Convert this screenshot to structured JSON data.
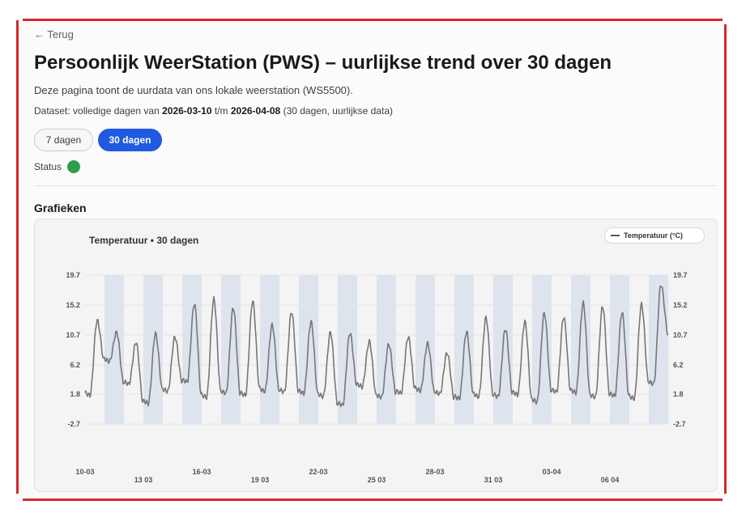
{
  "nav": {
    "back_label": "← Terug"
  },
  "page": {
    "title": "Persoonlijk WeerStation (PWS) – uurlijkse trend over 30 dagen",
    "description": "Deze pagina toont de uurdata van ons lokale weerstation (WS5500).",
    "dataset_prefix": "Dataset: volledige dagen van ",
    "dataset_start": "2026-03-10",
    "dataset_mid": " t/m ",
    "dataset_end": "2026-04-08",
    "dataset_suffix": " (30 dagen, uurlijkse data)"
  },
  "range_buttons": {
    "seven": "7 dagen",
    "thirty": "30 dagen",
    "selected": "30 dagen"
  },
  "status": {
    "label": "Status",
    "color": "#2e9d4a"
  },
  "section": {
    "title": "Grafieken"
  },
  "colors": {
    "accent": "#1f5ae0",
    "frame": "#d9262c",
    "line": "#777777",
    "band": "#dde4ee"
  },
  "chart_data": {
    "type": "line",
    "title": "Temperatuur • 30 dagen",
    "legend": {
      "label": "Temperatuur (°C)",
      "placement": "top-right"
    },
    "ylim": [
      -2.7,
      19.7
    ],
    "yticks": [
      "19.7",
      "15.2",
      "10.7",
      "6.2",
      "1.8",
      "-2.7"
    ],
    "xticks": [
      "10-03",
      "13 03",
      "16-03",
      "19 03",
      "22-03",
      "25 03",
      "28-03",
      "31 03",
      "03-04",
      "06 04"
    ],
    "grid": true,
    "series": [
      {
        "name": "Temperatuur (°C)",
        "unit": "°C",
        "x_start": "2026-03-10",
        "daily_max": [
          12.9,
          11.1,
          9.6,
          10.9,
          10.4,
          15.4,
          16.1,
          14.8,
          15.8,
          12.2,
          14.2,
          12.7,
          11.1,
          11.0,
          9.7,
          9.3,
          10.4,
          9.4,
          8.0,
          11.2,
          13.3,
          11.6,
          12.7,
          14.0,
          13.4,
          15.5,
          15.0,
          14.1,
          15.3,
          18.3
        ],
        "daily_min": [
          1.6,
          6.7,
          3.3,
          0.4,
          2.2,
          3.6,
          1.3,
          1.9,
          1.6,
          2.2,
          2.1,
          1.9,
          1.4,
          0.1,
          2.9,
          1.3,
          1.9,
          2.3,
          1.8,
          1.1,
          1.4,
          1.4,
          1.7,
          0.6,
          2.1,
          2.0,
          1.3,
          1.5,
          1.1,
          3.3
        ],
        "end_value": 10.8
      }
    ]
  }
}
